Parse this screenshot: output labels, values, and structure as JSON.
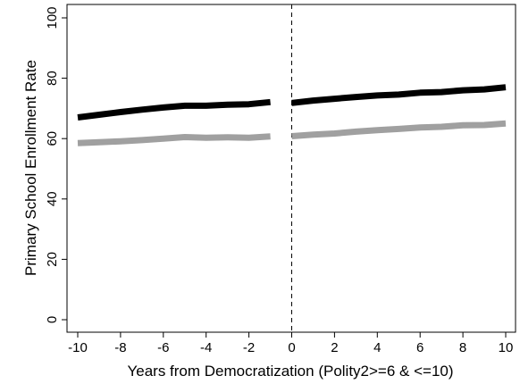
{
  "chart_data": {
    "type": "line",
    "title": "",
    "xlabel": "Years from Democratization (Polity2>=6 & <=10)",
    "ylabel": "Primary School Enrollment Rate",
    "xlim": [
      -10,
      10
    ],
    "ylim": [
      0,
      100
    ],
    "xticks": [
      "-10",
      "-8",
      "-6",
      "-4",
      "-2",
      "0",
      "2",
      "4",
      "6",
      "8",
      "10"
    ],
    "yticks": [
      "0",
      "20",
      "40",
      "60",
      "80",
      "100"
    ],
    "grid": false,
    "legend": "none",
    "reference_line": {
      "x": 0,
      "style": "dashed"
    },
    "series": [
      {
        "color": "#000000",
        "segments": [
          {
            "x": [
              -10,
              -9,
              -8,
              -7,
              -6,
              -5,
              -4,
              -3,
              -2,
              -1
            ],
            "y": [
              67.0,
              67.9,
              68.8,
              69.6,
              70.3,
              70.9,
              70.9,
              71.2,
              71.4,
              72.1
            ]
          },
          {
            "x": [
              0,
              1,
              2,
              3,
              4,
              5,
              6,
              7,
              8,
              9,
              10
            ],
            "y": [
              71.8,
              72.6,
              73.2,
              73.8,
              74.3,
              74.6,
              75.2,
              75.4,
              76.0,
              76.3,
              77.0
            ]
          }
        ]
      },
      {
        "color": "#a0a0a0",
        "segments": [
          {
            "x": [
              -10,
              -9,
              -8,
              -7,
              -6,
              -5,
              -4,
              -3,
              -2,
              -1
            ],
            "y": [
              58.5,
              58.8,
              59.1,
              59.5,
              60.0,
              60.5,
              60.3,
              60.4,
              60.3,
              60.7
            ]
          },
          {
            "x": [
              0,
              1,
              2,
              3,
              4,
              5,
              6,
              7,
              8,
              9,
              10
            ],
            "y": [
              60.8,
              61.3,
              61.7,
              62.3,
              62.8,
              63.2,
              63.7,
              63.9,
              64.4,
              64.5,
              65.0
            ]
          }
        ]
      }
    ]
  }
}
